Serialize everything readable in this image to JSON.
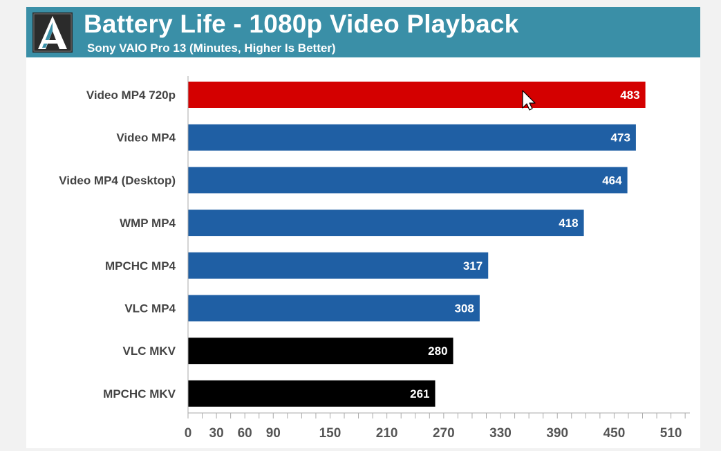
{
  "header": {
    "title": "Battery Life - 1080p Video Playback",
    "subtitle": "Sony VAIO Pro 13 (Minutes, Higher Is Better)",
    "logo_icon": "anandtech-logo-icon"
  },
  "chart_data": {
    "type": "bar",
    "orientation": "horizontal",
    "title": "Battery Life - 1080p Video Playback",
    "subtitle": "Sony VAIO Pro 13 (Minutes, Higher Is Better)",
    "categories": [
      "Video MP4 720p",
      "Video MP4",
      "Video MP4 (Desktop)",
      "WMP MP4",
      "MPCHC MP4",
      "VLC MP4",
      "VLC MKV",
      "MPCHC MKV"
    ],
    "values": [
      483,
      473,
      464,
      418,
      317,
      308,
      280,
      261
    ],
    "bar_colors": [
      "#d40000",
      "#1f5fa4",
      "#1f5fa4",
      "#1f5fa4",
      "#1f5fa4",
      "#1f5fa4",
      "#000000",
      "#000000"
    ],
    "xlim": [
      0,
      530
    ],
    "xticks": [
      0,
      30,
      60,
      90,
      150,
      210,
      270,
      330,
      390,
      450,
      510
    ],
    "grid": false,
    "legend": "none",
    "data_labels": true
  }
}
